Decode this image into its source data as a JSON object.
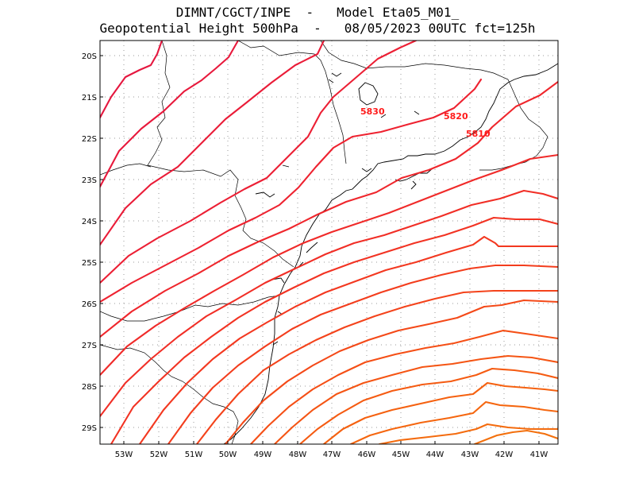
{
  "header": {
    "line1": "DIMNT/CGCT/INPE  -   Model Eta05_M01_",
    "line2": "Geopotential Height 500hPa  -   08/05/2023 00UTC fct=125h"
  },
  "axes": {
    "lat_labels": [
      "20S",
      "21S",
      "22S",
      "23S",
      "24S",
      "25S",
      "26S",
      "27S",
      "28S",
      "29S"
    ],
    "lon_labels": [
      "53W",
      "52W",
      "51W",
      "50W",
      "49W",
      "48W",
      "47W",
      "46W",
      "45W",
      "44W",
      "43W",
      "42W",
      "41W"
    ]
  },
  "contour_labels": [
    {
      "text": "5830"
    },
    {
      "text": "5820"
    },
    {
      "text": "5810"
    }
  ],
  "colors": {
    "frame": "#000000",
    "grid": "#999999",
    "coast": "#000000",
    "label": "#ff1a1a",
    "contours": [
      "#e5173f",
      "#e8193c",
      "#ea1c38",
      "#ec1f34",
      "#ee2230",
      "#ef262c",
      "#f02a29",
      "#f12e26",
      "#f23323",
      "#f33820",
      "#f33d1d",
      "#f4431b",
      "#f44918",
      "#f54f16",
      "#f55514",
      "#f55b12",
      "#f56110",
      "#f5660f",
      "#f46b0e",
      "#f3700d"
    ]
  },
  "map_features": {
    "contours": "geopotential height isolines",
    "coastline": "coastline",
    "borders": "state borders"
  }
}
